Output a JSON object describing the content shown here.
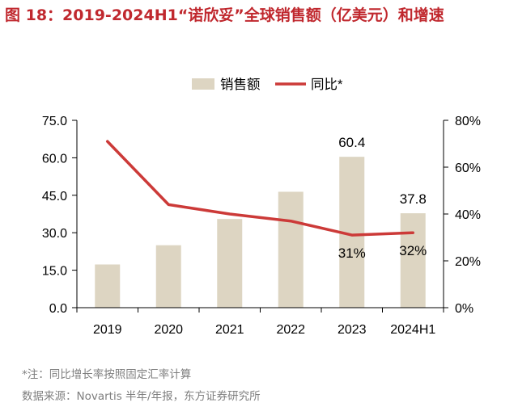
{
  "title": "图 18：2019-2024H1“诺欣妥”全球销售额（亿美元）和增速",
  "notes": {
    "note": "*注：同比增长率按照固定汇率计算",
    "source": "数据来源：Novartis 半年/年报，东方证券研究所"
  },
  "colors": {
    "bar": "#ddd5c2",
    "line": "#cc3a38",
    "title": "#c0282e",
    "axis": "#000000",
    "note": "#7f7f7f"
  },
  "chart_data": {
    "type": "bar",
    "categories": [
      "2019",
      "2020",
      "2021",
      "2022",
      "2023",
      "2024H1"
    ],
    "series": [
      {
        "name": "销售额",
        "type": "bar",
        "axis": "left",
        "values": [
          17.3,
          25.0,
          35.5,
          46.4,
          60.4,
          37.8
        ]
      },
      {
        "name": "同比*",
        "type": "line",
        "axis": "right",
        "values": [
          71,
          44,
          40,
          37,
          31,
          32
        ]
      }
    ],
    "data_labels": [
      {
        "series": 0,
        "index": 4,
        "text": "60.4"
      },
      {
        "series": 0,
        "index": 5,
        "text": "37.8"
      },
      {
        "series": 1,
        "index": 4,
        "text": "31%"
      },
      {
        "series": 1,
        "index": 5,
        "text": "32%"
      }
    ],
    "y_left": {
      "min": 0,
      "max": 75,
      "ticks": [
        "0.0",
        "15.0",
        "30.0",
        "45.0",
        "60.0",
        "75.0"
      ]
    },
    "y_right": {
      "min": 0,
      "max": 80,
      "ticks": [
        "0%",
        "20%",
        "40%",
        "60%",
        "80%"
      ]
    },
    "legend": {
      "position": "top",
      "items": [
        "销售额",
        "同比*"
      ]
    },
    "grid": false
  }
}
